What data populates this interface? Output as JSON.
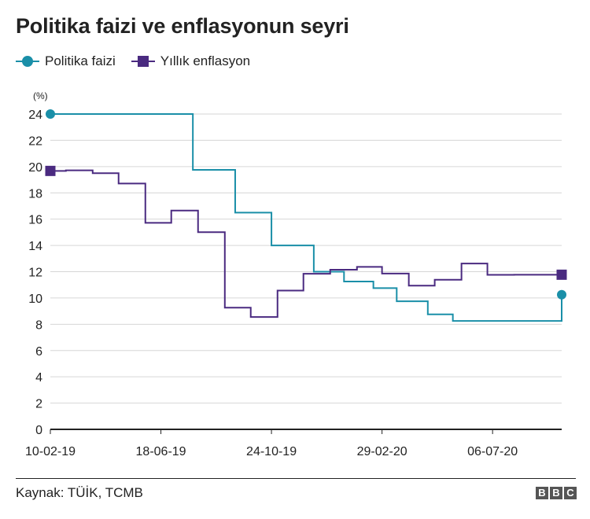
{
  "colors": {
    "policy": "#1a8fa8",
    "inflation": "#4a2a80",
    "grid": "#d6d6d6",
    "axis": "#222222"
  },
  "source": "Kaynak: TÜİK, TCMB",
  "logo_letters": [
    "B",
    "B",
    "C"
  ],
  "chart_data": {
    "type": "line",
    "title": "Politika faizi ve enflasyonun seyri",
    "ylabel": "(%)",
    "xlabel": "",
    "ylim": [
      0,
      24
    ],
    "yticks": [
      0,
      2,
      4,
      6,
      8,
      10,
      12,
      14,
      16,
      18,
      20,
      22,
      24
    ],
    "xticks": [
      "10-02-19",
      "18-06-19",
      "24-10-19",
      "29-02-20",
      "06-07-20"
    ],
    "xlim": [
      "2019-02-10",
      "2020-09-24"
    ],
    "grid": true,
    "legend_position": "top-left",
    "step": true,
    "series": [
      {
        "name": "Politika faizi",
        "color_key": "policy",
        "marker": "circle",
        "points": [
          [
            "2019-02-10",
            24.0
          ],
          [
            "2019-07-25",
            19.75
          ],
          [
            "2019-09-12",
            16.5
          ],
          [
            "2019-10-24",
            14.0
          ],
          [
            "2019-12-12",
            12.0
          ],
          [
            "2020-01-16",
            11.25
          ],
          [
            "2020-02-19",
            10.75
          ],
          [
            "2020-03-17",
            9.75
          ],
          [
            "2020-04-22",
            8.75
          ],
          [
            "2020-05-21",
            8.25
          ],
          [
            "2020-09-24",
            10.25
          ]
        ]
      },
      {
        "name": "Yıllık enflasyon",
        "color_key": "inflation",
        "marker": "square",
        "points": [
          [
            "2019-02-10",
            19.67
          ],
          [
            "2019-02-28",
            19.71
          ],
          [
            "2019-03-31",
            19.5
          ],
          [
            "2019-04-30",
            18.71
          ],
          [
            "2019-05-31",
            15.72
          ],
          [
            "2019-06-30",
            16.65
          ],
          [
            "2019-07-31",
            15.01
          ],
          [
            "2019-08-31",
            9.26
          ],
          [
            "2019-09-30",
            8.55
          ],
          [
            "2019-10-31",
            10.56
          ],
          [
            "2019-11-30",
            11.84
          ],
          [
            "2019-12-31",
            12.15
          ],
          [
            "2020-01-31",
            12.37
          ],
          [
            "2020-02-29",
            11.86
          ],
          [
            "2020-03-31",
            10.94
          ],
          [
            "2020-04-30",
            11.39
          ],
          [
            "2020-05-31",
            12.62
          ],
          [
            "2020-06-30",
            11.76
          ],
          [
            "2020-07-31",
            11.77
          ],
          [
            "2020-09-24",
            11.77
          ]
        ]
      }
    ]
  }
}
